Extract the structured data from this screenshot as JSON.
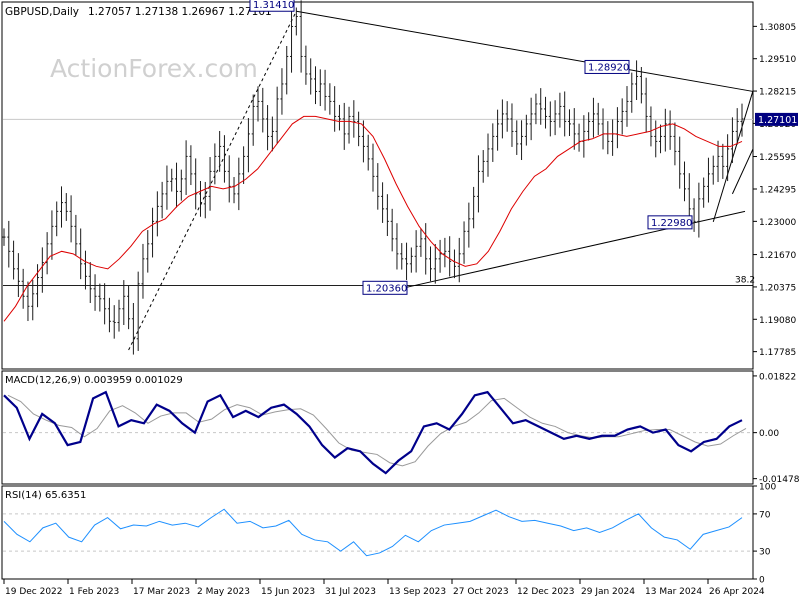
{
  "chart_data": [
    {
      "type": "candlestick",
      "header": {
        "symbol_timeframe": "GBPUSD,Daily",
        "ohlc": "1.27057 1.27138 1.26967 1.27101"
      },
      "watermark": "ActionForex.com",
      "ylim": [
        1.1709,
        1.3178
      ],
      "ticks": [
        "1.30805",
        "1.29510",
        "1.28215",
        "1.26920",
        "1.25595",
        "1.24295",
        "1.23000",
        "1.21670",
        "1.20375",
        "1.19080",
        "1.17785"
      ],
      "last_price": "1.27101",
      "fib_level": {
        "label": "38.2",
        "value": 1.2043
      },
      "reference_line": 1.2708,
      "annotations": [
        {
          "label": "1.31410",
          "value": 1.3141
        },
        {
          "label": "1.28920",
          "value": 1.2892
        },
        {
          "label": "1.22980",
          "value": 1.2298
        },
        {
          "label": "1.20360",
          "value": 1.2036
        }
      ],
      "series": [
        {
          "name": "price",
          "values": [
            1.2237,
            1.218,
            1.211,
            1.206,
            1.2,
            1.196,
            1.201,
            1.2075,
            1.2135,
            1.221,
            1.228,
            1.234,
            1.2375,
            1.234,
            1.228,
            1.221,
            1.213,
            1.208,
            1.203,
            1.2,
            1.199,
            1.195,
            1.19,
            1.1895,
            1.195,
            1.2,
            1.191,
            1.183,
            1.205,
            1.215,
            1.221,
            1.23,
            1.236,
            1.241,
            1.246,
            1.247,
            1.242,
            1.247,
            1.256,
            1.249,
            1.241,
            1.237,
            1.24,
            1.25,
            1.256,
            1.26,
            1.25,
            1.244,
            1.241,
            1.249,
            1.256,
            1.265,
            1.276,
            1.278,
            1.271,
            1.264,
            1.266,
            1.279,
            1.285,
            1.296,
            1.308,
            1.312,
            1.296,
            1.289,
            1.287,
            1.282,
            1.285,
            1.28,
            1.278,
            1.272,
            1.271,
            1.265,
            1.272,
            1.27,
            1.264,
            1.26,
            1.255,
            1.248,
            1.24,
            1.235,
            1.23,
            1.223,
            1.217,
            1.215,
            1.213,
            1.216,
            1.22,
            1.223,
            1.215,
            1.211,
            1.215,
            1.217,
            1.218,
            1.214,
            1.212,
            1.217,
            1.226,
            1.231,
            1.24,
            1.25,
            1.254,
            1.259,
            1.264,
            1.269,
            1.273,
            1.271,
            1.266,
            1.261,
            1.264,
            1.269,
            1.273,
            1.277,
            1.275,
            1.272,
            1.27,
            1.273,
            1.276,
            1.27,
            1.269,
            1.265,
            1.262,
            1.266,
            1.27,
            1.273,
            1.269,
            1.265,
            1.262,
            1.265,
            1.27,
            1.274,
            1.278,
            1.285,
            1.288,
            1.281,
            1.272,
            1.264,
            1.262,
            1.264,
            1.269,
            1.264,
            1.258,
            1.249,
            1.243,
            1.235,
            1.23,
            1.239,
            1.244,
            1.249,
            1.252,
            1.256,
            1.252,
            1.259,
            1.266,
            1.27,
            1.271
          ]
        },
        {
          "name": "ma",
          "values": [
            1.19,
            1.196,
            1.204,
            1.21,
            1.216,
            1.218,
            1.217,
            1.214,
            1.212,
            1.211,
            1.215,
            1.22,
            1.226,
            1.229,
            1.231,
            1.236,
            1.24,
            1.242,
            1.244,
            1.243,
            1.244,
            1.247,
            1.251,
            1.257,
            1.263,
            1.269,
            1.272,
            1.272,
            1.271,
            1.27,
            1.27,
            1.269,
            1.264,
            1.255,
            1.245,
            1.236,
            1.228,
            1.222,
            1.217,
            1.214,
            1.212,
            1.213,
            1.218,
            1.226,
            1.235,
            1.242,
            1.248,
            1.251,
            1.256,
            1.259,
            1.262,
            1.263,
            1.265,
            1.265,
            1.264,
            1.265,
            1.266,
            1.268,
            1.269,
            1.267,
            1.264,
            1.262,
            1.26,
            1.26,
            1.262
          ]
        },
        {
          "name": "MACD",
          "values": [
            0.012,
            0.008,
            -0.002,
            0.006,
            0.003,
            -0.004,
            -0.003,
            0.011,
            0.013,
            0.002,
            0.004,
            0.003,
            0.009,
            0.007,
            0.003,
            0.0,
            0.01,
            0.012,
            0.005,
            0.007,
            0.005,
            0.008,
            0.009,
            0.006,
            0.002,
            -0.004,
            -0.008,
            -0.005,
            -0.006,
            -0.01,
            -0.013,
            -0.009,
            -0.006,
            0.002,
            0.003,
            0.001,
            0.006,
            0.012,
            0.013,
            0.008,
            0.003,
            0.004,
            0.002,
            0.0,
            -0.002,
            -0.001,
            -0.002,
            -0.001,
            -0.001,
            0.001,
            0.002,
            0.0,
            0.001,
            -0.004,
            -0.006,
            -0.003,
            -0.002,
            0.002,
            0.004
          ]
        },
        {
          "name": "RSI(14)",
          "values": [
            62,
            48,
            40,
            55,
            60,
            45,
            40,
            58,
            66,
            54,
            58,
            57,
            62,
            58,
            60,
            56,
            66,
            75,
            60,
            62,
            55,
            57,
            63,
            48,
            42,
            40,
            30,
            40,
            25,
            28,
            35,
            47,
            40,
            52,
            58,
            60,
            62,
            68,
            74,
            67,
            62,
            63,
            60,
            57,
            52,
            55,
            50,
            55,
            63,
            70,
            55,
            45,
            42,
            32,
            48,
            52,
            56,
            66
          ]
        }
      ],
      "x_tick_labels": [
        "19 Dec 2022",
        "1 Feb 2023",
        "17 Mar 2023",
        "2 May 2023",
        "15 Jun 2023",
        "31 Jul 2023",
        "13 Sep 2023",
        "27 Oct 2023",
        "12 Dec 2023",
        "29 Jan 2024",
        "13 Mar 2024",
        "26 Apr 2024"
      ]
    },
    {
      "type": "line",
      "title": "MACD(12,26,9) 0.003959 0.001029",
      "ylim": [
        -0.0165,
        0.0198
      ],
      "ticks": [
        "0.01822",
        "0.00",
        "-0.014781"
      ],
      "current_label": "0.00"
    },
    {
      "type": "line",
      "title": "RSI(14) 65.6351",
      "ylim": [
        0,
        100
      ],
      "ticks": [
        "100",
        "70",
        "30",
        "0"
      ],
      "levels": [
        70,
        30
      ]
    }
  ],
  "colors": {
    "price": "#1a1a1a",
    "ma": "#dd0000",
    "macd": "#00008b",
    "signal": "#9a9a9a",
    "rsi": "#1e90ff",
    "grid": "#c8c8c8",
    "label_bg": "#000080",
    "label_fg": "#ffffff",
    "frame": "#000000",
    "watermark": "#d0d0d0"
  }
}
